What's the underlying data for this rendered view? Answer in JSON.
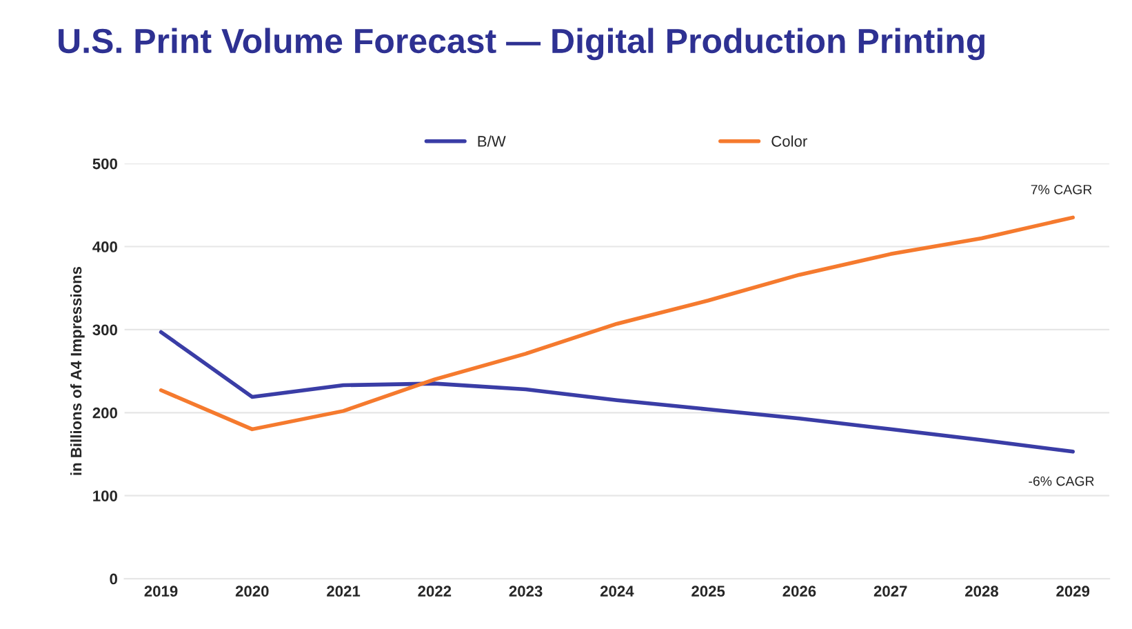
{
  "chart_data": {
    "type": "line",
    "title": "U.S. Print Volume Forecast — Digital Production Printing",
    "ylabel": "in Billions of A4 Impressions",
    "categories": [
      "2019",
      "2020",
      "2021",
      "2022",
      "2023",
      "2024",
      "2025",
      "2026",
      "2027",
      "2028",
      "2029"
    ],
    "series": [
      {
        "name": "B/W",
        "color": "#3a3da6",
        "values": [
          297,
          219,
          233,
          235,
          228,
          215,
          204,
          193,
          180,
          167,
          153
        ]
      },
      {
        "name": "Color",
        "color": "#f57a2e",
        "values": [
          227,
          180,
          202,
          240,
          271,
          307,
          335,
          366,
          391,
          410,
          435
        ]
      }
    ],
    "ylim": [
      0,
      500
    ],
    "yticks": [
      0,
      100,
      200,
      300,
      400,
      500
    ],
    "grid": "y",
    "legend": "top",
    "marker": "none",
    "line_style": "solid",
    "annotations": [
      {
        "text": "7% CAGR",
        "x": "2029",
        "y": 435
      },
      {
        "text": "-6% CAGR",
        "x": "2029",
        "y": 153
      }
    ]
  }
}
